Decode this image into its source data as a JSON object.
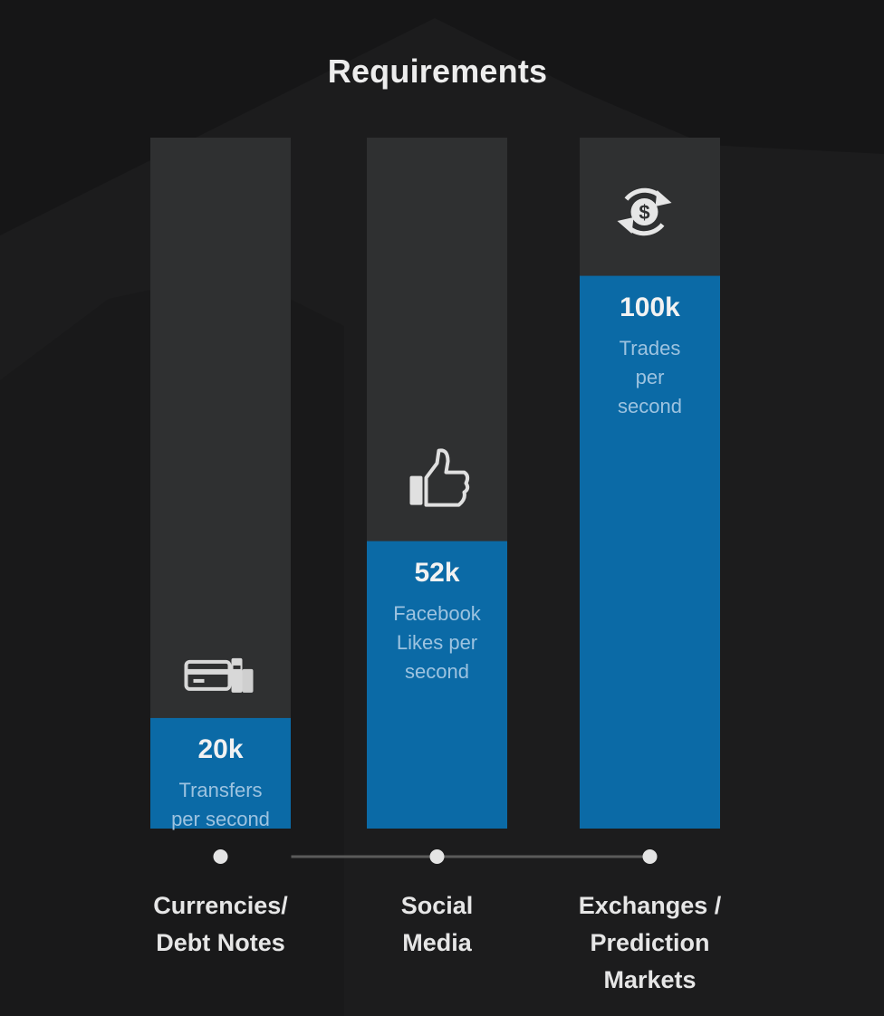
{
  "title": "Requirements",
  "chart_data": {
    "type": "bar",
    "categories": [
      "Currencies/\nDebt Notes",
      "Social\nMedia",
      "Exchanges /\nPrediction\nMarkets"
    ],
    "values": [
      20,
      52,
      100
    ],
    "value_labels": [
      "20k",
      "52k",
      "100k"
    ],
    "descriptions": [
      "Transfers\nper second",
      "Facebook\nLikes per\nsecond",
      "Trades\nper\nsecond"
    ],
    "icons": [
      "credit-card-icon",
      "thumbs-up-icon",
      "dollar-exchange-icon"
    ],
    "ylim": [
      0,
      125
    ],
    "grid": false,
    "legend": "none"
  },
  "colors": {
    "background": "#161617",
    "track": "#2f3031",
    "bar": "#0b6aa6",
    "timeline": "#5a5a5a",
    "dot": "#e4e4e4"
  }
}
